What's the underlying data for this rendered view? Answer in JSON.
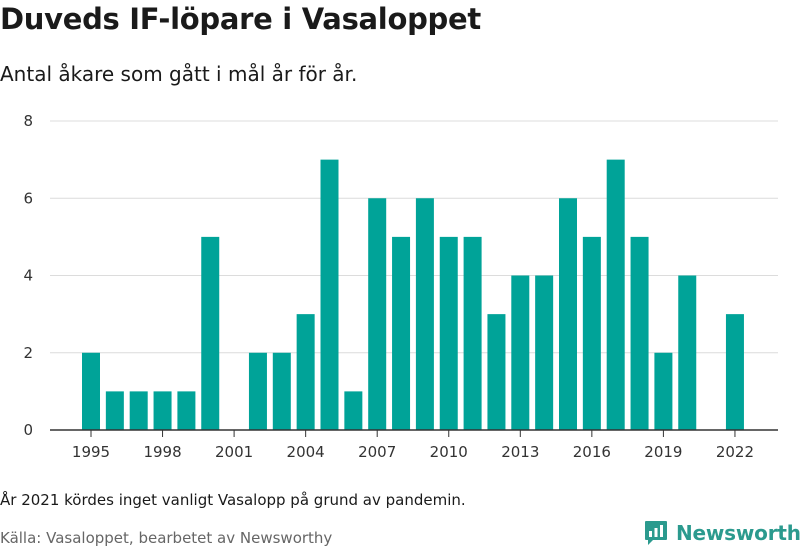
{
  "header": {
    "title": "Duveds IF-löpare i Vasaloppet",
    "subtitle": "Antal åkare som gått i mål år för år."
  },
  "footer": {
    "note": "År 2021 kördes inget vanligt Vasalopp på grund av pandemin.",
    "source": "Källa: Vasaloppet, bearbetet av Newsworthy",
    "brand": "Newsworthy"
  },
  "colors": {
    "bar": "#00a398",
    "grid": "#dcdcdc",
    "axis": "#333333",
    "brand": "#2b9a8e"
  },
  "chart_data": {
    "type": "bar",
    "title": "Duveds IF-löpare i Vasaloppet",
    "subtitle": "Antal åkare som gått i mål år för år.",
    "xlabel": "",
    "ylabel": "",
    "x": [
      1995,
      1996,
      1997,
      1998,
      1999,
      2000,
      2001,
      2002,
      2003,
      2004,
      2005,
      2006,
      2007,
      2008,
      2009,
      2010,
      2011,
      2012,
      2013,
      2014,
      2015,
      2016,
      2017,
      2018,
      2019,
      2020,
      2021,
      2022
    ],
    "values": [
      2,
      1,
      1,
      1,
      1,
      5,
      0,
      2,
      2,
      3,
      7,
      1,
      6,
      5,
      6,
      5,
      5,
      3,
      4,
      4,
      6,
      5,
      7,
      5,
      2,
      4,
      0,
      3
    ],
    "x_ticks": [
      1995,
      1998,
      2001,
      2004,
      2007,
      2010,
      2013,
      2016,
      2019,
      2022
    ],
    "y_ticks": [
      0,
      2,
      4,
      6,
      8
    ],
    "ylim": [
      0,
      8
    ],
    "grid": true,
    "legend": false
  }
}
